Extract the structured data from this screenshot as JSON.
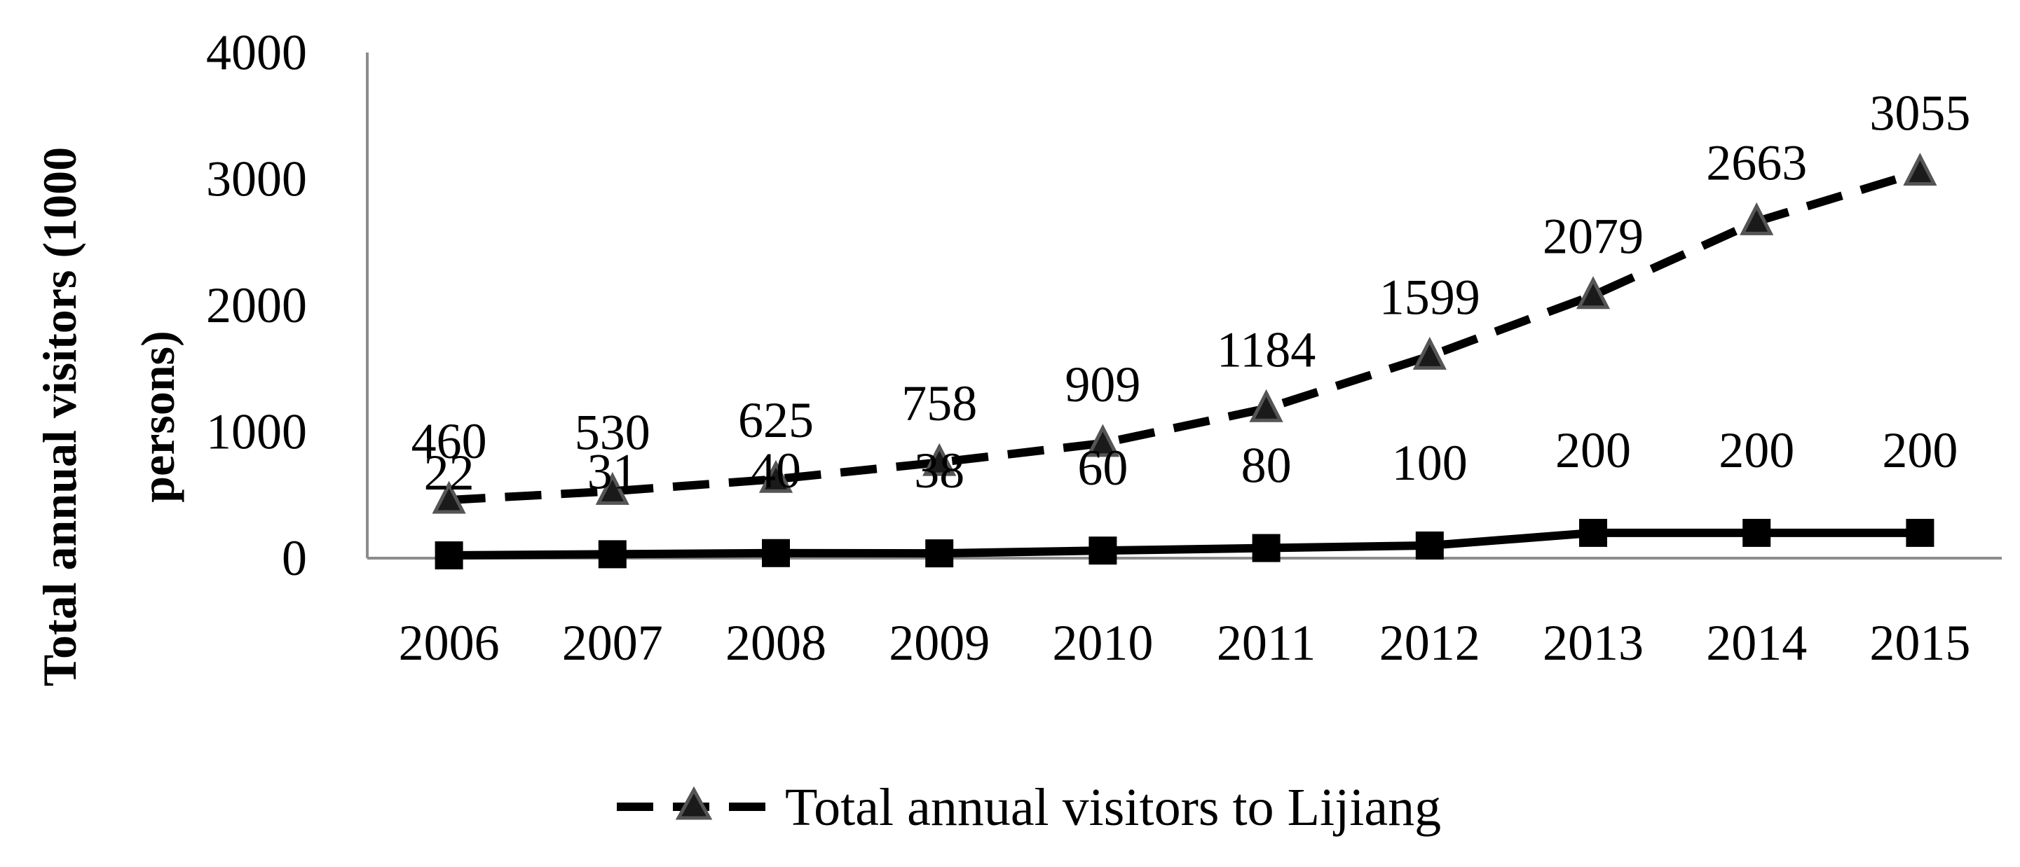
{
  "chart_data": {
    "type": "line",
    "categories": [
      "2006",
      "2007",
      "2008",
      "2009",
      "2010",
      "2011",
      "2012",
      "2013",
      "2014",
      "2015"
    ],
    "series": [
      {
        "name": "Total annual visitors to Lijiang",
        "values": [
          460,
          530,
          625,
          758,
          909,
          1184,
          1599,
          2079,
          2663,
          3055
        ],
        "style": "dashed",
        "marker": "triangle",
        "color": "#000000"
      },
      {
        "values": [
          22,
          31,
          40,
          38,
          60,
          80,
          100,
          200,
          200,
          200
        ],
        "style": "solid",
        "marker": "square",
        "color": "#000000"
      }
    ],
    "ylabel_line1": "Total annual visitors (1000",
    "ylabel_line2": "persons)",
    "ylim": [
      0,
      4000
    ],
    "yticks": [
      "0",
      "1000",
      "2000",
      "3000",
      "4000"
    ],
    "grid": false,
    "legend_position": "bottom"
  }
}
